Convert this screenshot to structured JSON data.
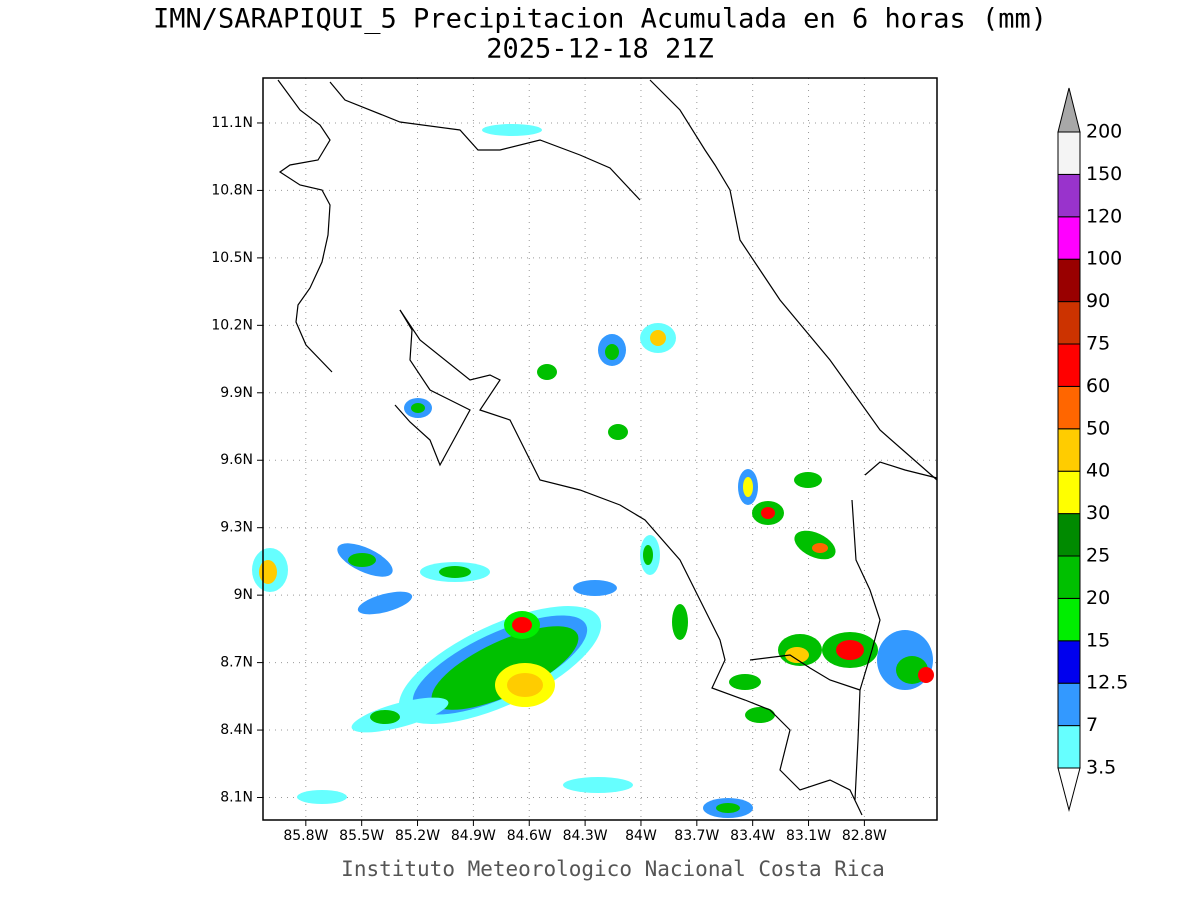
{
  "title": "IMN/SARAPIQUI_5 Precipitacion Acumulada en 6 horas (mm)",
  "subtitle": "2025-12-18 21Z",
  "map": {
    "lat_range": [
      8.0,
      11.3
    ],
    "lon_range": [
      -86.03,
      -82.41
    ],
    "lat_ticks": [
      {
        "value": 11.1,
        "label": "11.1N"
      },
      {
        "value": 10.8,
        "label": "10.8N"
      },
      {
        "value": 10.5,
        "label": "10.5N"
      },
      {
        "value": 10.2,
        "label": "10.2N"
      },
      {
        "value": 9.9,
        "label": "9.9N"
      },
      {
        "value": 9.6,
        "label": "9.6N"
      },
      {
        "value": 9.3,
        "label": "9.3N"
      },
      {
        "value": 9,
        "label": "9N"
      },
      {
        "value": 8.7,
        "label": "8.7N"
      },
      {
        "value": 8.4,
        "label": "8.4N"
      },
      {
        "value": 8.1,
        "label": "8.1N"
      }
    ],
    "lon_ticks": [
      {
        "value": -85.8,
        "label": "85.8W"
      },
      {
        "value": -85.5,
        "label": "85.5W"
      },
      {
        "value": -85.2,
        "label": "85.2W"
      },
      {
        "value": -84.9,
        "label": "84.9W"
      },
      {
        "value": -84.6,
        "label": "84.6W"
      },
      {
        "value": -84.3,
        "label": "84.3W"
      },
      {
        "value": -84,
        "label": "84W"
      },
      {
        "value": -83.7,
        "label": "83.7W"
      },
      {
        "value": -83.4,
        "label": "83.4W"
      },
      {
        "value": -83.1,
        "label": "83.1W"
      },
      {
        "value": -82.8,
        "label": "82.8W"
      }
    ]
  },
  "colorbar": {
    "labels": [
      3.5,
      7,
      12.5,
      15,
      20,
      25,
      30,
      40,
      50,
      60,
      75,
      90,
      100,
      120,
      150,
      200
    ],
    "colors": [
      "#66ffff",
      "#3399ff",
      "#0000ee",
      "#00ee00",
      "#00c000",
      "#008a00",
      "#ffff00",
      "#ffcc00",
      "#ff6600",
      "#ff0000",
      "#cc3300",
      "#990000",
      "#ff00ff",
      "#9933cc",
      "#f4f4f4"
    ],
    "over_color": "#a8a8a8",
    "under_color": "#ffffff"
  },
  "footer": "Instituto Meteorologico Nacional Costa Rica"
}
